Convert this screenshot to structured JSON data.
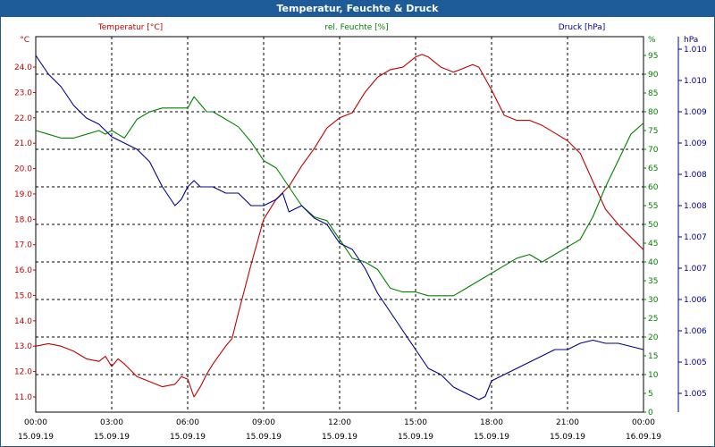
{
  "window": {
    "title": "Temperatur, Feuchte & Druck"
  },
  "colors": {
    "temperature": "#c00000",
    "humidity": "#008000",
    "pressure": "#00008b",
    "grid": "#000000"
  },
  "chart_data": {
    "type": "line",
    "title": "Temperatur, Feuchte & Druck",
    "grid": true,
    "x_ticks": [
      {
        "time": "00:00",
        "date": "15.09.19"
      },
      {
        "time": "03:00",
        "date": "15.09.19"
      },
      {
        "time": "06:00",
        "date": "15.09.19"
      },
      {
        "time": "09:00",
        "date": "15.09.19"
      },
      {
        "time": "12:00",
        "date": "15.09.19"
      },
      {
        "time": "15:00",
        "date": "15.09.19"
      },
      {
        "time": "18:00",
        "date": "15.09.19"
      },
      {
        "time": "21:00",
        "date": "15.09.19"
      },
      {
        "time": "00:00",
        "date": "16.09.19"
      }
    ],
    "x_unit": "hours",
    "xlim": [
      0,
      24
    ],
    "axes": {
      "temperature": {
        "label": "Temperatur [°C]",
        "unit": "°C",
        "ylim": [
          10.4,
          25.2
        ],
        "ticks": [
          "11.0",
          "12.0",
          "13.0",
          "14.0",
          "15.0",
          "16.0",
          "17.0",
          "18.0",
          "19.0",
          "20.0",
          "21.0",
          "22.0",
          "23.0",
          "24.0"
        ]
      },
      "humidity": {
        "label": "rel. Feuchte [%]",
        "unit": "%",
        "ylim": [
          0,
          100
        ],
        "ticks": [
          "0",
          "5",
          "10",
          "15",
          "20",
          "25",
          "30",
          "35",
          "40",
          "45",
          "50",
          "55",
          "60",
          "65",
          "70",
          "75",
          "80",
          "85",
          "90",
          "95"
        ]
      },
      "pressure": {
        "label": "Druck [hPa]",
        "unit": "hPa",
        "ylim": [
          1004.6,
          1010.6
        ],
        "ticks": [
          {
            "v": 1004.9,
            "label": "1.005"
          },
          {
            "v": 1005.4,
            "label": "1.005"
          },
          {
            "v": 1005.9,
            "label": "1.006"
          },
          {
            "v": 1006.4,
            "label": "1.006"
          },
          {
            "v": 1006.9,
            "label": "1.007"
          },
          {
            "v": 1007.4,
            "label": "1.007"
          },
          {
            "v": 1007.9,
            "label": "1.008"
          },
          {
            "v": 1008.4,
            "label": "1.008"
          },
          {
            "v": 1008.9,
            "label": "1.009"
          },
          {
            "v": 1009.4,
            "label": "1.009"
          },
          {
            "v": 1009.9,
            "label": "1.010"
          },
          {
            "v": 1010.4,
            "label": "1.010"
          }
        ]
      }
    },
    "series": [
      {
        "name": "Temperatur [°C]",
        "axis": "temperature",
        "color": "#c00000",
        "x": [
          0,
          0.5,
          1,
          1.5,
          2,
          2.5,
          2.75,
          3,
          3.25,
          3.5,
          4,
          4.5,
          5,
          5.5,
          5.75,
          6,
          6.25,
          6.5,
          6.75,
          7,
          7.5,
          7.75,
          8,
          8.5,
          9,
          9.5,
          10,
          10.5,
          11,
          11.5,
          12,
          12.5,
          13,
          13.5,
          14,
          14.5,
          15,
          15.25,
          15.5,
          15.75,
          16,
          16.5,
          17,
          17.25,
          17.5,
          18,
          18.5,
          19,
          19.5,
          20,
          20.5,
          21,
          21.5,
          22,
          22.5,
          23,
          23.5,
          24
        ],
        "values": [
          13.0,
          13.1,
          13.0,
          12.8,
          12.5,
          12.4,
          12.6,
          12.2,
          12.5,
          12.3,
          11.8,
          11.6,
          11.4,
          11.5,
          11.8,
          11.7,
          11.0,
          11.4,
          11.9,
          12.3,
          13.0,
          13.3,
          14.3,
          16.2,
          18.0,
          18.8,
          19.3,
          20.1,
          20.8,
          21.6,
          22.0,
          22.2,
          23.0,
          23.6,
          23.9,
          24.0,
          24.4,
          24.5,
          24.4,
          24.2,
          24.0,
          23.8,
          24.0,
          24.1,
          24.0,
          23.1,
          22.1,
          21.9,
          21.9,
          21.7,
          21.4,
          21.1,
          20.6,
          19.5,
          18.4,
          17.8,
          17.3,
          16.8
        ]
      },
      {
        "name": "rel. Feuchte [%]",
        "axis": "humidity",
        "color": "#008000",
        "x": [
          0,
          0.5,
          1,
          1.5,
          2,
          2.5,
          2.75,
          3,
          3.25,
          3.5,
          4,
          4.5,
          5,
          5.5,
          6,
          6.25,
          6.5,
          6.75,
          7,
          7.5,
          8,
          8.5,
          9,
          9.5,
          10,
          10.5,
          11,
          11.5,
          12,
          12.5,
          13,
          13.5,
          14,
          14.5,
          15,
          15.5,
          16,
          16.5,
          17,
          17.5,
          18,
          18.5,
          19,
          19.5,
          20,
          20.5,
          21,
          21.5,
          22,
          22.5,
          23,
          23.5,
          24
        ],
        "values": [
          75,
          74,
          73,
          73,
          74,
          75,
          74,
          75,
          74,
          73,
          78,
          80,
          81,
          81,
          81,
          84,
          82,
          80,
          80,
          78,
          76,
          72,
          67,
          65,
          60,
          55,
          52,
          51,
          46,
          41,
          40,
          38,
          33,
          32,
          32,
          31,
          31,
          31,
          33,
          35,
          37,
          39,
          41,
          42,
          40,
          42,
          44,
          46,
          52,
          60,
          67,
          74,
          77
        ]
      },
      {
        "name": "Druck [hPa]",
        "axis": "pressure",
        "color": "#00008b",
        "x": [
          0,
          0.5,
          1,
          1.5,
          2,
          2.5,
          3,
          3.5,
          4,
          4.5,
          5,
          5.5,
          5.75,
          6,
          6.25,
          6.5,
          7,
          7.5,
          8,
          8.5,
          9,
          9.5,
          9.75,
          10,
          10.5,
          11,
          11.5,
          12,
          12.5,
          13,
          13.5,
          14,
          14.5,
          15,
          15.5,
          16,
          16.5,
          17,
          17.5,
          17.75,
          18,
          18.5,
          19,
          19.5,
          20,
          20.5,
          21,
          21.5,
          22,
          22.5,
          23,
          23.5,
          24
        ],
        "values": [
          1010.3,
          1010.0,
          1009.8,
          1009.5,
          1009.3,
          1009.2,
          1009.0,
          1008.9,
          1008.8,
          1008.6,
          1008.2,
          1007.9,
          1008.0,
          1008.2,
          1008.3,
          1008.2,
          1008.2,
          1008.1,
          1008.1,
          1007.9,
          1007.9,
          1008.0,
          1008.1,
          1007.8,
          1007.9,
          1007.7,
          1007.6,
          1007.3,
          1007.2,
          1006.9,
          1006.5,
          1006.2,
          1005.9,
          1005.6,
          1005.3,
          1005.2,
          1005.0,
          1004.9,
          1004.8,
          1004.85,
          1005.1,
          1005.2,
          1005.3,
          1005.4,
          1005.5,
          1005.6,
          1005.6,
          1005.7,
          1005.75,
          1005.7,
          1005.7,
          1005.65,
          1005.6
        ]
      }
    ]
  }
}
